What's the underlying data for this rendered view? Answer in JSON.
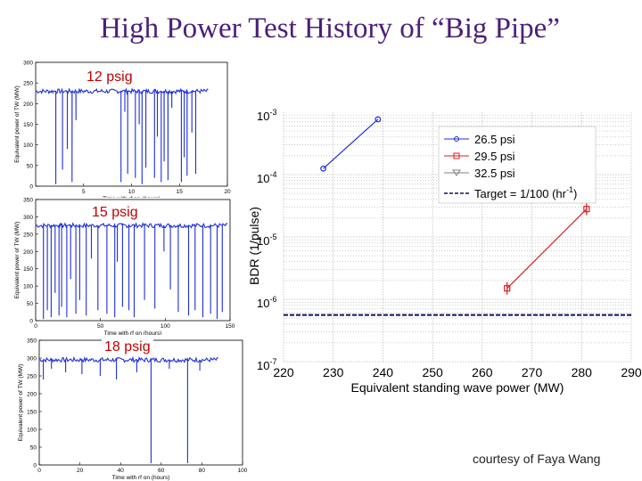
{
  "title": "High Power Test History of “Big Pipe”",
  "credit": "courtesy of Faya Wang",
  "colors": {
    "title": "#4b1f7a",
    "trace": "#1f2fd8",
    "label": "#c00000"
  },
  "chart_data": [
    {
      "type": "line",
      "label": "12 psig",
      "xlabel": "Time with rf on (hours)",
      "ylabel": "Equivalent power of TW (MW)",
      "xlim": [
        0,
        20
      ],
      "ylim": [
        0,
        300
      ],
      "xticks": [
        5,
        10,
        15,
        20
      ],
      "yticks": [
        0,
        50,
        100,
        150,
        200,
        250,
        300
      ],
      "baseline": 230,
      "x_end": 18,
      "drops": [
        [
          2.1,
          5
        ],
        [
          2.8,
          40
        ],
        [
          3.3,
          90
        ],
        [
          3.8,
          10
        ],
        [
          4.2,
          160
        ],
        [
          8.9,
          10
        ],
        [
          9.3,
          180
        ],
        [
          9.6,
          30
        ],
        [
          10.4,
          20
        ],
        [
          10.8,
          150
        ],
        [
          11.1,
          5
        ],
        [
          11.5,
          45
        ],
        [
          12.4,
          20
        ],
        [
          12.7,
          120
        ],
        [
          13.1,
          10
        ],
        [
          13.4,
          60
        ],
        [
          13.8,
          15
        ],
        [
          14.2,
          190
        ],
        [
          15.2,
          10
        ],
        [
          15.5,
          70
        ],
        [
          15.8,
          25
        ],
        [
          16.3,
          130
        ],
        [
          16.7,
          30
        ]
      ]
    },
    {
      "type": "line",
      "label": "15 psig",
      "xlabel": "Time with rf on (hours)",
      "ylabel": "Equivalent power of TW (MW)",
      "xlim": [
        0,
        150
      ],
      "ylim": [
        0,
        350
      ],
      "xticks": [
        0,
        50,
        100,
        150
      ],
      "yticks": [
        0,
        50,
        100,
        150,
        200,
        250,
        300,
        350
      ],
      "baseline": 275,
      "x_end": 148,
      "drops": [
        [
          6,
          5
        ],
        [
          9,
          30
        ],
        [
          12,
          10
        ],
        [
          15,
          80
        ],
        [
          18,
          15
        ],
        [
          20,
          40
        ],
        [
          24,
          10
        ],
        [
          27,
          120
        ],
        [
          31,
          20
        ],
        [
          34,
          60
        ],
        [
          39,
          15
        ],
        [
          43,
          180
        ],
        [
          48,
          30
        ],
        [
          55,
          20
        ],
        [
          61,
          10
        ],
        [
          63,
          170
        ],
        [
          67,
          40
        ],
        [
          72,
          30
        ],
        [
          76,
          10
        ],
        [
          84,
          60
        ],
        [
          92,
          35
        ],
        [
          99,
          200
        ],
        [
          104,
          90
        ],
        [
          110,
          25
        ],
        [
          118,
          15
        ],
        [
          123,
          30
        ],
        [
          129,
          10
        ],
        [
          135,
          20
        ],
        [
          140,
          5
        ],
        [
          144,
          25
        ]
      ]
    },
    {
      "type": "line",
      "label": "18 psig",
      "xlabel": "Time with rf on (hours)",
      "ylabel": "Equivalent power of TW (MW)",
      "xlim": [
        0,
        100
      ],
      "ylim": [
        0,
        350
      ],
      "xticks": [
        0,
        20,
        40,
        60,
        80,
        100
      ],
      "yticks": [
        0,
        50,
        100,
        150,
        200,
        250,
        300,
        350
      ],
      "baseline": 295,
      "x_end": 88,
      "drops": [
        [
          2,
          240
        ],
        [
          6,
          270
        ],
        [
          13,
          260
        ],
        [
          21,
          255
        ],
        [
          30,
          250
        ],
        [
          38,
          240
        ],
        [
          48,
          260
        ],
        [
          55,
          5
        ],
        [
          64,
          270
        ],
        [
          73,
          5
        ],
        [
          79,
          265
        ]
      ]
    },
    {
      "type": "line",
      "xlabel": "Equivalent standing wave power (MW)",
      "ylabel": "BDR (1/pulse)",
      "yscale": "log",
      "xlim": [
        220,
        290
      ],
      "ylim": [
        1e-07,
        0.001
      ],
      "xticks": [
        220,
        230,
        240,
        250,
        260,
        270,
        280,
        290
      ],
      "ytick_labels": [
        {
          "base": "10",
          "exp": "-3"
        },
        {
          "base": "10",
          "exp": "-4"
        },
        {
          "base": "10",
          "exp": "-5"
        },
        {
          "base": "10",
          "exp": "-6"
        },
        {
          "base": "10",
          "exp": "-7"
        }
      ],
      "legend": "top-right",
      "series": [
        {
          "name": "26.5 psi",
          "color": "#1f2fd8",
          "marker": "circle",
          "points": [
            [
              228,
              0.000125
            ],
            [
              239,
              0.00077
            ]
          ]
        },
        {
          "name": "29.5 psi",
          "color": "#d81f1f",
          "marker": "square",
          "points": [
            [
              265,
              1.5e-06
            ],
            [
              281,
              2.8e-05
            ]
          ]
        },
        {
          "name": "32.5 psi",
          "color": "#808080",
          "marker": "triangle",
          "points": []
        }
      ],
      "target": {
        "label_parts": [
          "Target = 1/100 (hr",
          "-1",
          ")"
        ],
        "value": 5.6e-07
      }
    }
  ]
}
